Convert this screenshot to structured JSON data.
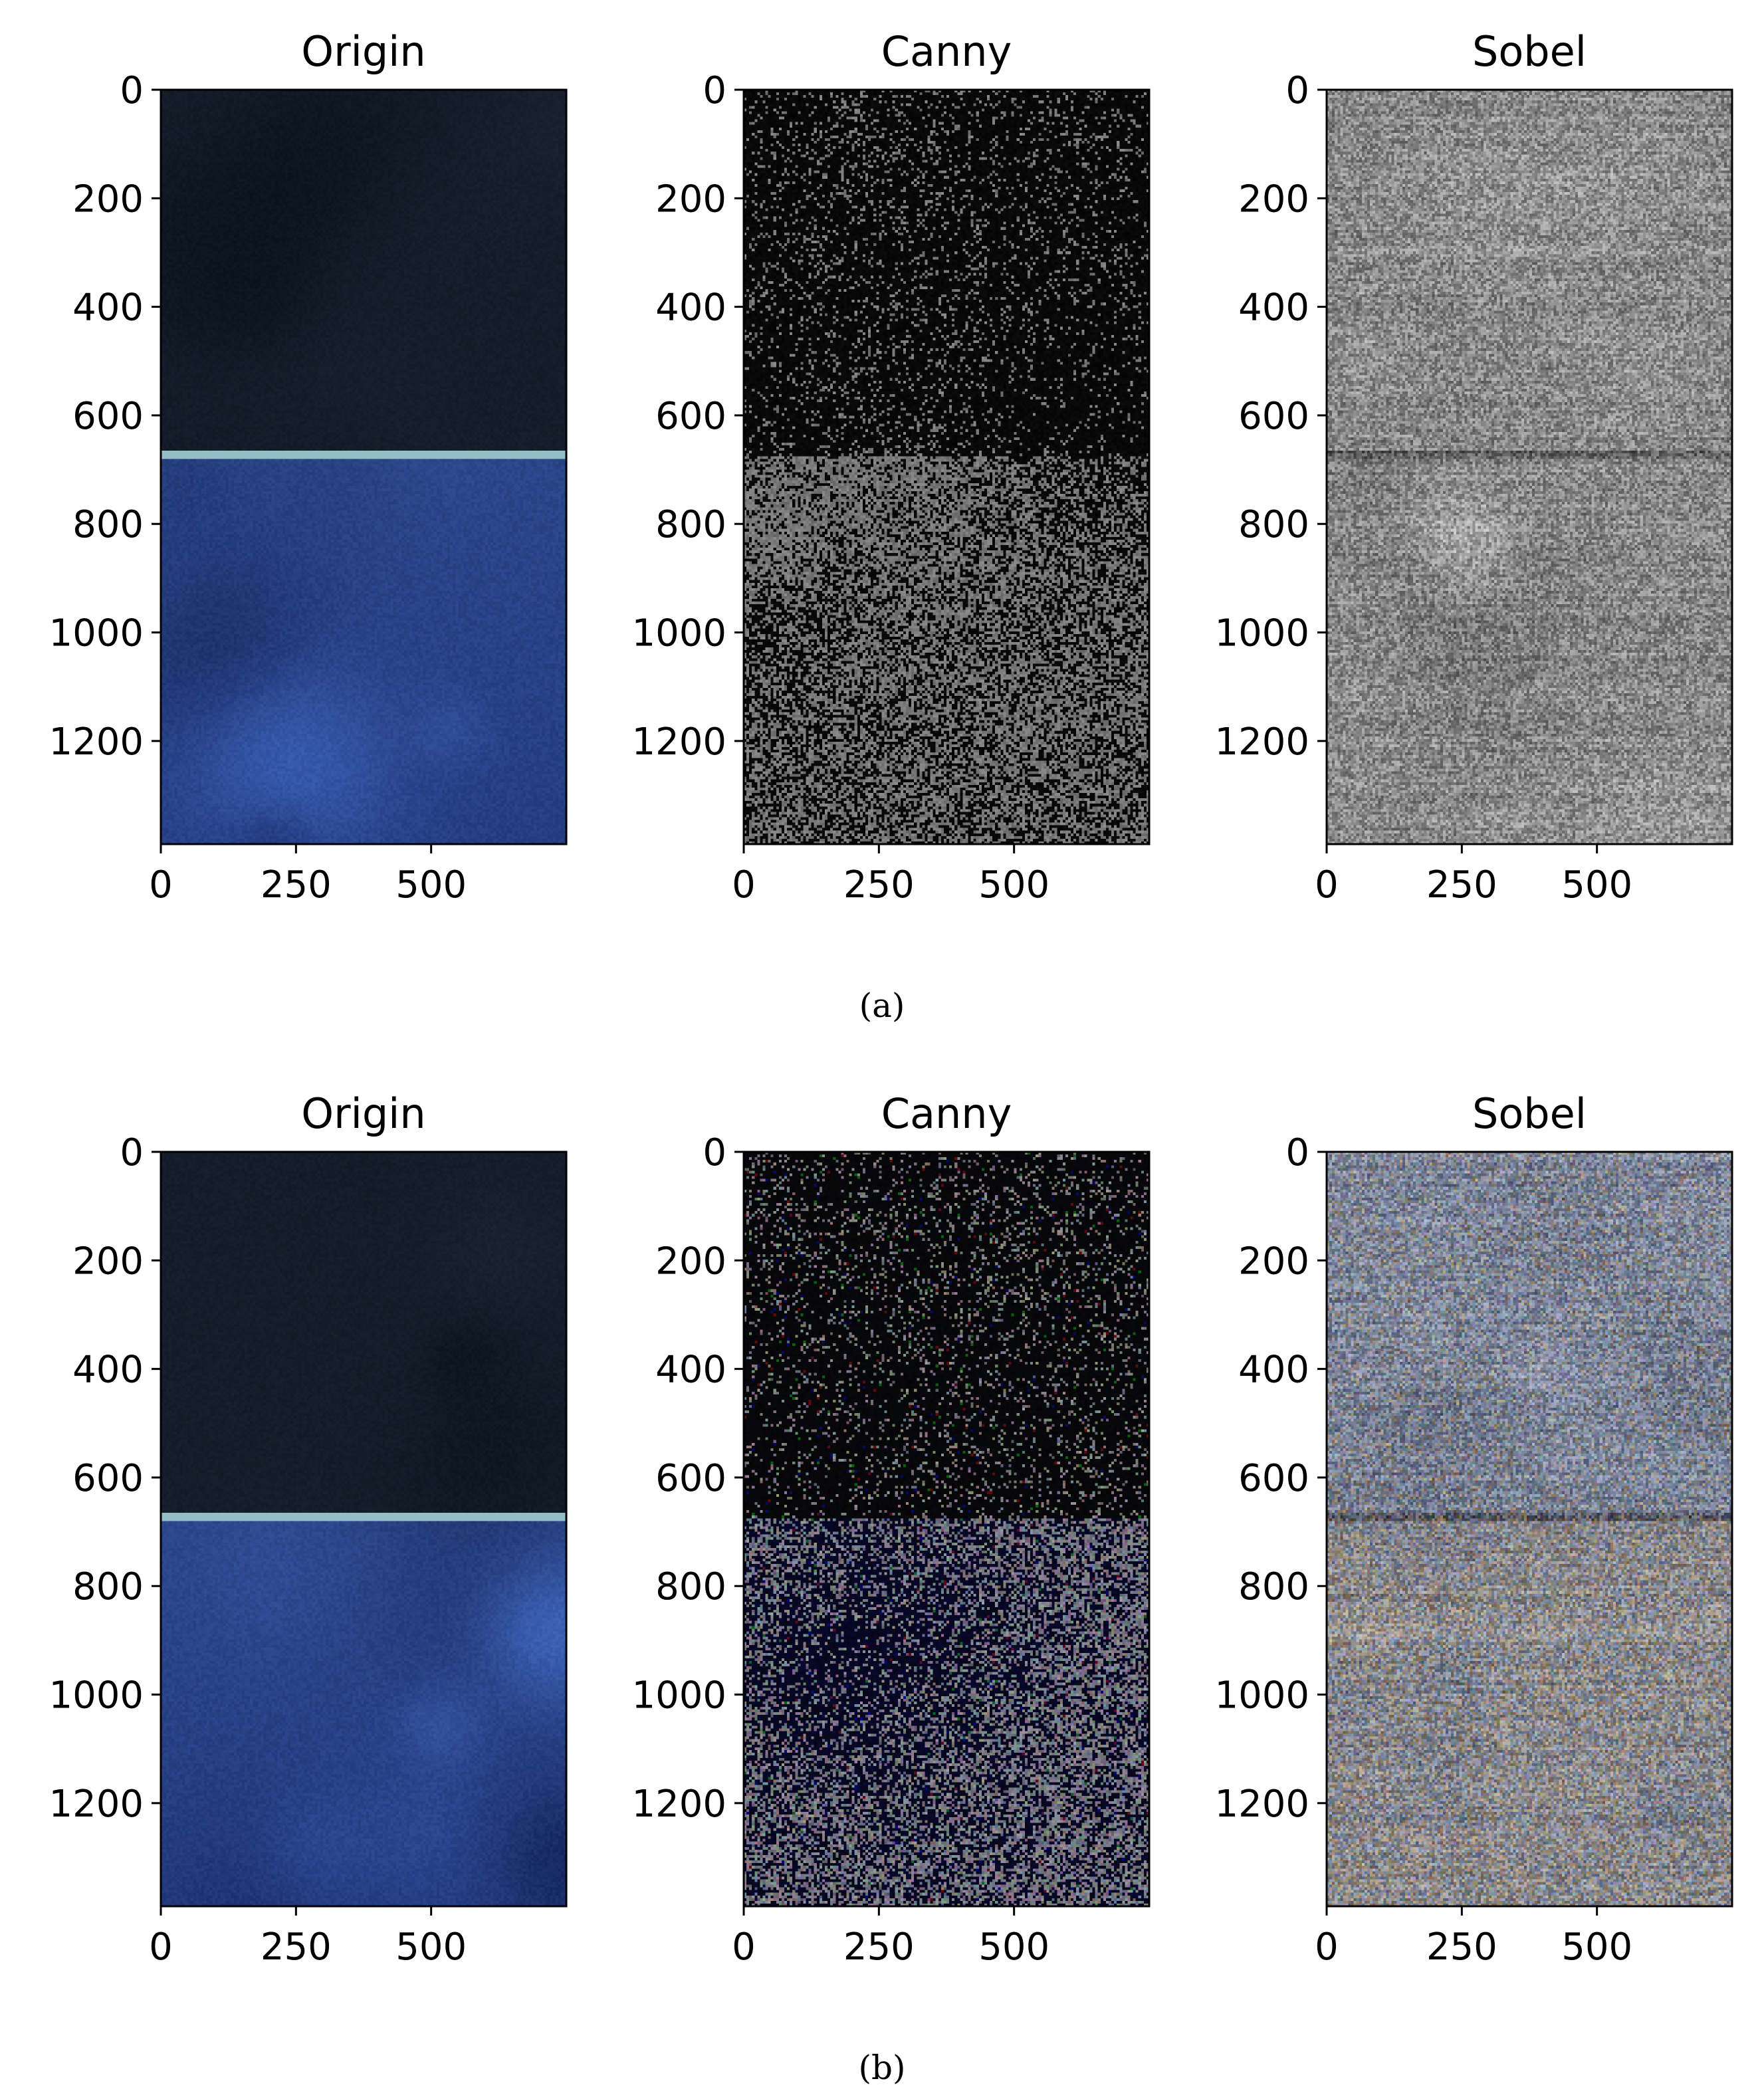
{
  "chart_data": [
    {
      "type": "heatmap",
      "title": "Origin",
      "xticks": [
        0,
        250,
        500
      ],
      "yticks": [
        0,
        200,
        400,
        600,
        800,
        1000,
        1200
      ],
      "xlim": [
        0,
        750
      ],
      "ylim": [
        1390,
        0
      ],
      "style": "origin",
      "seed": 11
    },
    {
      "type": "heatmap",
      "title": "Canny",
      "xticks": [
        0,
        250,
        500
      ],
      "yticks": [
        0,
        200,
        400,
        600,
        800,
        1000,
        1200
      ],
      "xlim": [
        0,
        750
      ],
      "ylim": [
        1390,
        0
      ],
      "style": "canny-gray",
      "seed": 23
    },
    {
      "type": "heatmap",
      "title": "Sobel",
      "xticks": [
        0,
        250,
        500
      ],
      "yticks": [
        0,
        200,
        400,
        600,
        800,
        1000,
        1200
      ],
      "xlim": [
        0,
        750
      ],
      "ylim": [
        1390,
        0
      ],
      "style": "sobel-gray",
      "seed": 37
    },
    {
      "type": "heatmap",
      "title": "Origin",
      "xticks": [
        0,
        250,
        500
      ],
      "yticks": [
        0,
        200,
        400,
        600,
        800,
        1000,
        1200
      ],
      "xlim": [
        0,
        750
      ],
      "ylim": [
        1390,
        0
      ],
      "style": "origin",
      "seed": 41
    },
    {
      "type": "heatmap",
      "title": "Canny",
      "xticks": [
        0,
        250,
        500
      ],
      "yticks": [
        0,
        200,
        400,
        600,
        800,
        1000,
        1200
      ],
      "xlim": [
        0,
        750
      ],
      "ylim": [
        1390,
        0
      ],
      "style": "canny-color",
      "seed": 53
    },
    {
      "type": "heatmap",
      "title": "Sobel",
      "xticks": [
        0,
        250,
        500
      ],
      "yticks": [
        0,
        200,
        400,
        600,
        800,
        1000,
        1200
      ],
      "xlim": [
        0,
        750
      ],
      "ylim": [
        1390,
        0
      ],
      "style": "sobel-color",
      "seed": 67
    }
  ],
  "captions": [
    "(a)",
    "(b)"
  ],
  "colors": {
    "text": "#000000",
    "origin_top": "#141c28",
    "origin_bottom": "#2a4a8c",
    "canny_dark": "#050505",
    "canny_gray": "#707070",
    "sobel_gray": "#8c8c8c",
    "sobel_color_a": "#8a8070",
    "sobel_color_b": "#9aa6c8"
  }
}
